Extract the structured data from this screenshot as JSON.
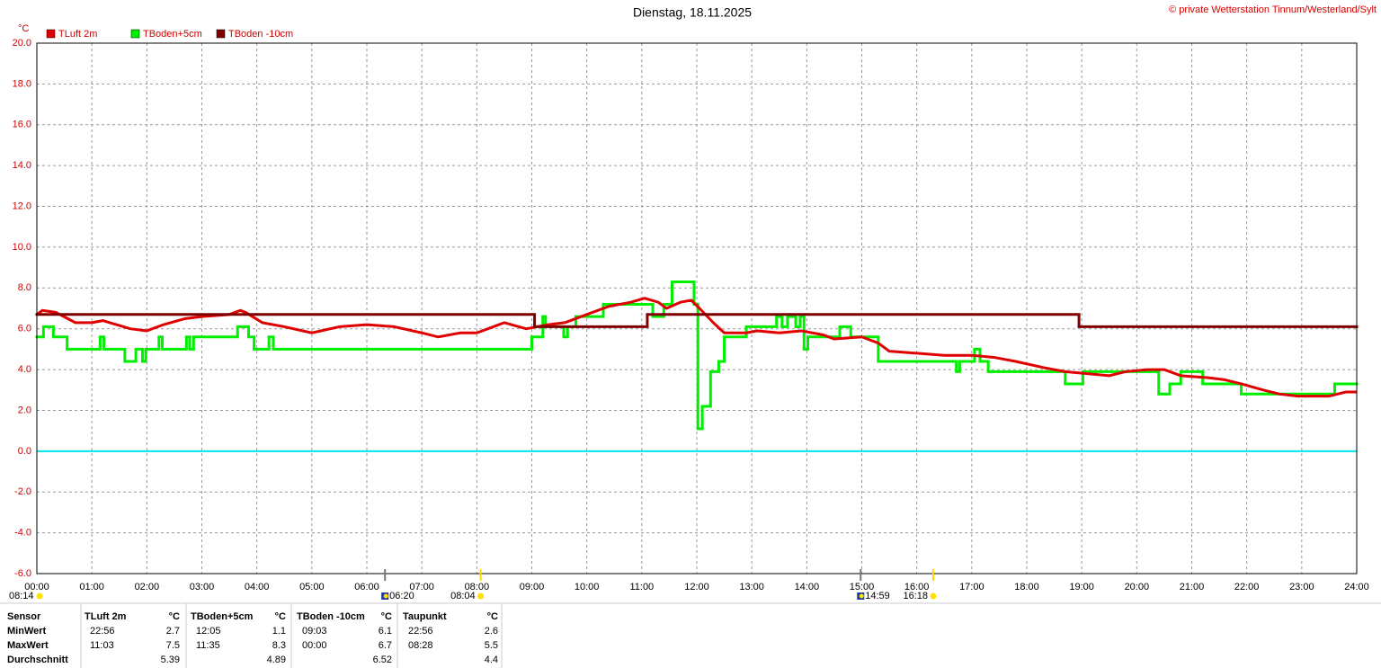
{
  "chart_data": {
    "type": "line",
    "title": "Dienstag, 18.11.2025",
    "copyright": "© private Wetterstation Tinnum/Westerland/Sylt",
    "unit_label": "°C",
    "xlim": [
      0,
      24
    ],
    "xticks": [
      {
        "value": 0,
        "label": "00:00"
      },
      {
        "value": 1,
        "label": "01:00"
      },
      {
        "value": 2,
        "label": "02:00"
      },
      {
        "value": 3,
        "label": "03:00"
      },
      {
        "value": 4,
        "label": "04:00"
      },
      {
        "value": 5,
        "label": "05:00"
      },
      {
        "value": 6,
        "label": "06:00"
      },
      {
        "value": 7,
        "label": "07:00"
      },
      {
        "value": 8,
        "label": "08:00"
      },
      {
        "value": 9,
        "label": "09:00"
      },
      {
        "value": 10,
        "label": "10:00"
      },
      {
        "value": 11,
        "label": "11:00"
      },
      {
        "value": 12,
        "label": "12:00"
      },
      {
        "value": 13,
        "label": "13:00"
      },
      {
        "value": 14,
        "label": "14:00"
      },
      {
        "value": 15,
        "label": "15:00"
      },
      {
        "value": 16,
        "label": "16:00"
      },
      {
        "value": 17,
        "label": "17:00"
      },
      {
        "value": 18,
        "label": "18:00"
      },
      {
        "value": 19,
        "label": "19:00"
      },
      {
        "value": 20,
        "label": "20:00"
      },
      {
        "value": 21,
        "label": "21:00"
      },
      {
        "value": 22,
        "label": "22:00"
      },
      {
        "value": 23,
        "label": "23:00"
      },
      {
        "value": 24,
        "label": "24:00"
      }
    ],
    "ylim": [
      -6,
      20
    ],
    "yticks": [
      {
        "value": -6,
        "label": "-6.0"
      },
      {
        "value": -4,
        "label": "-4.0"
      },
      {
        "value": -2,
        "label": "-2.0"
      },
      {
        "value": 0,
        "label": "0.0"
      },
      {
        "value": 2,
        "label": "2.0"
      },
      {
        "value": 4,
        "label": "4.0"
      },
      {
        "value": 6,
        "label": "6.0"
      },
      {
        "value": 8,
        "label": "8.0"
      },
      {
        "value": 10,
        "label": "10.0"
      },
      {
        "value": 12,
        "label": "12.0"
      },
      {
        "value": 14,
        "label": "14.0"
      },
      {
        "value": 16,
        "label": "16.0"
      },
      {
        "value": 18,
        "label": "18.0"
      },
      {
        "value": 20,
        "label": "20.0"
      }
    ],
    "grid": true,
    "zero_line_color": "#00e5ee",
    "series": [
      {
        "name": "TLuft 2m",
        "color": "#e00000",
        "step": false,
        "x": [
          0,
          0.1,
          0.35,
          0.7,
          1.0,
          1.2,
          1.7,
          2.0,
          2.3,
          2.7,
          3.0,
          3.5,
          3.7,
          3.8,
          4.1,
          4.5,
          5.0,
          5.5,
          6.0,
          6.5,
          7.0,
          7.3,
          7.7,
          8.0,
          8.3,
          8.5,
          8.9,
          9.3,
          9.6,
          10.0,
          10.4,
          10.8,
          11.05,
          11.3,
          11.45,
          11.7,
          11.9,
          12.05,
          12.3,
          12.5,
          12.9,
          13.1,
          13.5,
          13.9,
          14.3,
          14.5,
          15.0,
          15.3,
          15.5,
          16.0,
          16.5,
          17.0,
          17.4,
          17.8,
          18.3,
          18.7,
          19.1,
          19.5,
          19.8,
          20.2,
          20.5,
          20.8,
          21.3,
          21.6,
          21.9,
          22.3,
          22.6,
          22.93,
          23.5,
          23.8,
          24
        ],
        "values": [
          6.7,
          6.9,
          6.8,
          6.3,
          6.3,
          6.4,
          6.0,
          5.9,
          6.2,
          6.5,
          6.6,
          6.7,
          6.9,
          6.8,
          6.3,
          6.1,
          5.8,
          6.1,
          6.2,
          6.1,
          5.8,
          5.6,
          5.8,
          5.8,
          6.1,
          6.3,
          6.0,
          6.2,
          6.3,
          6.7,
          7.1,
          7.3,
          7.5,
          7.3,
          7.0,
          7.3,
          7.4,
          7.0,
          6.3,
          5.8,
          5.8,
          5.9,
          5.8,
          5.9,
          5.7,
          5.5,
          5.6,
          5.3,
          4.9,
          4.8,
          4.7,
          4.7,
          4.6,
          4.4,
          4.1,
          3.9,
          3.8,
          3.7,
          3.9,
          4.0,
          4.0,
          3.7,
          3.6,
          3.5,
          3.3,
          3.0,
          2.8,
          2.7,
          2.7,
          2.9,
          2.9
        ]
      },
      {
        "name": "TBoden+5cm",
        "color": "#00ee00",
        "step": true,
        "x": [
          0,
          0.12,
          0.3,
          0.55,
          1.15,
          1.22,
          1.6,
          1.8,
          1.92,
          1.98,
          2.22,
          2.28,
          2.72,
          2.78,
          2.85,
          3.65,
          3.85,
          3.95,
          4.22,
          4.3,
          9.0,
          9.2,
          9.25,
          9.58,
          9.65,
          9.8,
          10.3,
          11.2,
          11.4,
          11.55,
          11.95,
          12.02,
          12.1,
          12.25,
          12.4,
          12.5,
          12.9,
          13.45,
          13.55,
          13.65,
          13.8,
          13.88,
          13.95,
          14.02,
          14.6,
          14.8,
          15.3,
          16.72,
          16.78,
          17.05,
          17.15,
          17.3,
          18.7,
          19.02,
          20.4,
          20.6,
          20.8,
          21.2,
          21.9,
          23.6
        ],
        "values": [
          5.6,
          6.1,
          5.6,
          5.0,
          5.6,
          5.0,
          4.4,
          5.0,
          4.4,
          5.0,
          5.6,
          5.0,
          5.6,
          5.0,
          5.6,
          6.1,
          5.6,
          5.0,
          5.6,
          5.0,
          5.6,
          6.6,
          6.1,
          5.6,
          6.1,
          6.6,
          7.2,
          6.6,
          7.2,
          8.3,
          7.2,
          1.1,
          2.2,
          3.9,
          4.4,
          5.6,
          6.1,
          6.6,
          6.1,
          6.6,
          6.1,
          6.6,
          5.0,
          5.6,
          6.1,
          5.6,
          4.4,
          3.9,
          4.4,
          5.0,
          4.4,
          3.9,
          3.3,
          3.9,
          2.8,
          3.3,
          3.9,
          3.3,
          2.8,
          3.3
        ]
      },
      {
        "name": "TBoden -10cm",
        "color": "#800000",
        "step": true,
        "x": [
          0,
          9.05,
          11.1,
          18.95
        ],
        "values": [
          6.7,
          6.1,
          6.7,
          6.1
        ]
      }
    ],
    "daylight": "08:14",
    "sun_events": [
      {
        "x": 8.07,
        "label": "08:04"
      },
      {
        "x": 16.3,
        "label": "16:18"
      }
    ],
    "moon_events": [
      {
        "x": 6.33,
        "label": "06:20"
      },
      {
        "x": 14.98,
        "label": "14:59"
      }
    ]
  },
  "table": {
    "header": [
      "Sensor",
      "TLuft 2m",
      "°C",
      "TBoden+5cm",
      "°C",
      "TBoden -10cm",
      "°C",
      "Taupunkt",
      "°C"
    ],
    "rows": [
      [
        "MinWert",
        "22:56",
        "2.7",
        "12:05",
        "1.1",
        "09:03",
        "6.1",
        "22:56",
        "2.6"
      ],
      [
        "MaxWert",
        "11:03",
        "7.5",
        "11:35",
        "8.3",
        "00:00",
        "6.7",
        "08:28",
        "5.5"
      ],
      [
        "Durchschnitt",
        null,
        "5.39",
        null,
        "4.89",
        null,
        "6.52",
        null,
        "4.4"
      ]
    ]
  }
}
